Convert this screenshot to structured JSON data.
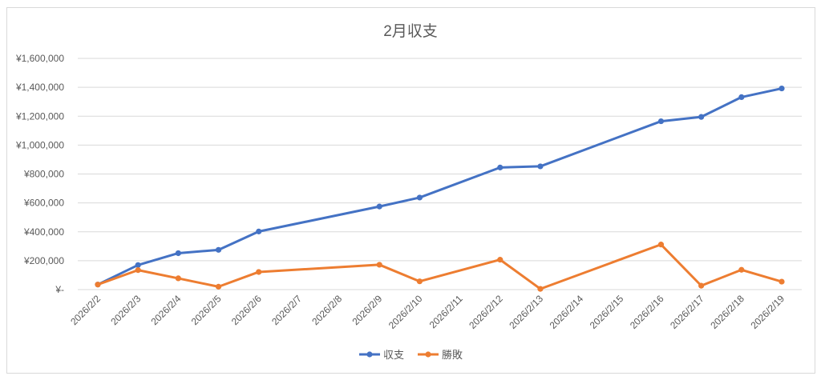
{
  "chart_data": {
    "type": "line",
    "title": "2月収支",
    "categories": [
      "2026/2/2",
      "2026/2/3",
      "2026/2/4",
      "2026/2/5",
      "2026/2/6",
      "2026/2/7",
      "2026/2/8",
      "2026/2/9",
      "2026/2/10",
      "2026/2/11",
      "2026/2/12",
      "2026/2/13",
      "2026/2/14",
      "2026/2/15",
      "2026/2/16",
      "2026/2/17",
      "2026/2/18",
      "2026/2/19"
    ],
    "series": [
      {
        "name": "収支",
        "color": "#4472c4",
        "values": [
          35000,
          170000,
          252000,
          275000,
          402000,
          null,
          null,
          575000,
          637000,
          null,
          845000,
          853000,
          null,
          null,
          1165000,
          1195000,
          1332000,
          1392000
        ]
      },
      {
        "name": "勝敗",
        "color": "#ed7d31",
        "values": [
          35000,
          135000,
          78000,
          20000,
          122000,
          null,
          null,
          172000,
          57000,
          null,
          207000,
          5000,
          null,
          null,
          312000,
          27000,
          137000,
          55000
        ]
      }
    ],
    "ylim": [
      0,
      1600000
    ],
    "yticks": [
      "¥-",
      "¥200,000",
      "¥400,000",
      "¥600,000",
      "¥800,000",
      "¥1,000,000",
      "¥1,200,000",
      "¥1,400,000",
      "¥1,600,000"
    ],
    "ytick_values": [
      0,
      200000,
      400000,
      600000,
      800000,
      1000000,
      1200000,
      1400000,
      1600000
    ],
    "grid": true,
    "legend": "bottom"
  }
}
